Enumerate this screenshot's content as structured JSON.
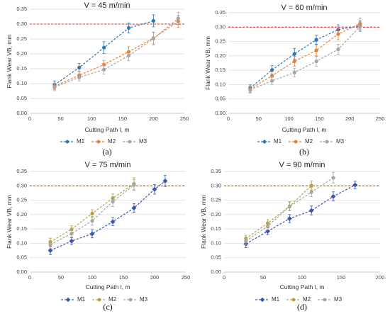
{
  "chart_data": [
    {
      "type": "line",
      "title": "V = 45 m/min",
      "xlabel": "Cutting Path l, m",
      "ylabel": "Flank Wear VB, mm",
      "xlim": [
        0,
        250
      ],
      "ylim": [
        0,
        0.35
      ],
      "xticks": [
        "0",
        "50",
        "100",
        "150",
        "200",
        "250"
      ],
      "yticks": [
        "0.00",
        "0.05",
        "0.10",
        "0.15",
        "0.20",
        "0.25",
        "0.30",
        "0.35"
      ],
      "threshold": 0.3,
      "threshold_color": "#e83030",
      "panel_label": "(a)",
      "series": [
        {
          "name": "M1",
          "color": "#2e75b6",
          "marker": "circle",
          "x": [
            40,
            80,
            120,
            160,
            200
          ],
          "y": [
            0.096,
            0.154,
            0.221,
            0.287,
            0.311
          ],
          "err": [
            0.013,
            0.014,
            0.02,
            0.017,
            0.02
          ]
        },
        {
          "name": "M2",
          "color": "#ed7d31",
          "marker": "circle",
          "x": [
            40,
            80,
            120,
            160,
            200,
            240
          ],
          "y": [
            0.091,
            0.128,
            0.164,
            0.207,
            0.253,
            0.309
          ],
          "err": [
            0.011,
            0.012,
            0.014,
            0.017,
            0.02,
            0.02
          ]
        },
        {
          "name": "M3",
          "color": "#a5a5a5",
          "marker": "circle",
          "x": [
            40,
            80,
            120,
            160,
            200,
            240
          ],
          "y": [
            0.088,
            0.121,
            0.147,
            0.194,
            0.251,
            0.319
          ],
          "err": [
            0.012,
            0.012,
            0.015,
            0.017,
            0.021,
            0.021
          ]
        }
      ]
    },
    {
      "type": "line",
      "title": "V = 60 m/min",
      "xlabel": "Cutting Path l, m",
      "ylabel": "Flank Wear VB, mm",
      "xlim": [
        0,
        250
      ],
      "ylim": [
        0,
        0.35
      ],
      "xticks": [
        "0",
        "50",
        "100",
        "150",
        "200",
        "250"
      ],
      "yticks": [
        "0.00",
        "0.05",
        "0.10",
        "0.15",
        "0.20",
        "0.25",
        "0.30",
        "0.35"
      ],
      "threshold": 0.3,
      "threshold_color": "#e83030",
      "panel_label": "(b)",
      "series": [
        {
          "name": "M1",
          "color": "#2e75b6",
          "marker": "circle",
          "x": [
            36,
            72,
            109,
            145,
            181,
            217
          ],
          "y": [
            0.088,
            0.151,
            0.207,
            0.256,
            0.291,
            0.305
          ],
          "err": [
            0.011,
            0.015,
            0.019,
            0.016,
            0.017,
            0.016
          ]
        },
        {
          "name": "M2",
          "color": "#ed7d31",
          "marker": "circle",
          "x": [
            36,
            72,
            109,
            145,
            181,
            217
          ],
          "y": [
            0.084,
            0.131,
            0.181,
            0.219,
            0.276,
            0.312
          ],
          "err": [
            0.011,
            0.014,
            0.017,
            0.019,
            0.02,
            0.019
          ]
        },
        {
          "name": "M3",
          "color": "#a5a5a5",
          "marker": "circle",
          "x": [
            36,
            72,
            109,
            145,
            181,
            217
          ],
          "y": [
            0.082,
            0.113,
            0.142,
            0.181,
            0.223,
            0.302
          ],
          "err": [
            0.011,
            0.012,
            0.015,
            0.017,
            0.017,
            0.017
          ]
        }
      ]
    },
    {
      "type": "line",
      "title": "V = 75 m/min",
      "xlabel": "Cutting Path l, m",
      "ylabel": "Flank Wear VB, mm",
      "xlim": [
        0,
        250
      ],
      "ylim": [
        0,
        0.35
      ],
      "xticks": [
        "0",
        "50",
        "100",
        "150",
        "200",
        "250"
      ],
      "yticks": [
        "0.00",
        "0.05",
        "0.10",
        "0.15",
        "0.20",
        "0.25",
        "0.30",
        "0.35"
      ],
      "threshold": 0.3,
      "threshold_color": "#8c6d2e",
      "panel_label": "(c)",
      "series": [
        {
          "name": "M1",
          "color": "#3a54b4",
          "marker": "diamond",
          "x": [
            33,
            67,
            100,
            133,
            167,
            200,
            217
          ],
          "y": [
            0.075,
            0.108,
            0.133,
            0.175,
            0.223,
            0.288,
            0.317
          ],
          "err": [
            0.014,
            0.012,
            0.014,
            0.014,
            0.015,
            0.017,
            0.019
          ]
        },
        {
          "name": "M2",
          "color": "#b8a13a",
          "marker": "circle",
          "x": [
            33,
            67,
            100,
            133,
            167
          ],
          "y": [
            0.105,
            0.149,
            0.204,
            0.257,
            0.307
          ],
          "err": [
            0.013,
            0.012,
            0.013,
            0.015,
            0.021
          ]
        },
        {
          "name": "M3",
          "color": "#a5a5a5",
          "marker": "circle",
          "x": [
            33,
            67,
            100,
            133,
            167
          ],
          "y": [
            0.096,
            0.134,
            0.178,
            0.245,
            0.303
          ],
          "err": [
            0.013,
            0.012,
            0.015,
            0.017,
            0.019
          ]
        }
      ]
    },
    {
      "type": "line",
      "title": "V = 90 m/min",
      "xlabel": "Cutting Path l, m",
      "ylabel": "Flank Wear VB, mm",
      "xlim": [
        0,
        200
      ],
      "ylim": [
        0,
        0.35
      ],
      "xticks": [
        "0",
        "50",
        "100",
        "150",
        "200"
      ],
      "yticks": [
        "0.00",
        "0.05",
        "0.10",
        "0.15",
        "0.20",
        "0.25",
        "0.30",
        "0.35"
      ],
      "threshold": 0.3,
      "threshold_color": "#8c6d2e",
      "panel_label": "(d)",
      "series": [
        {
          "name": "M1",
          "color": "#3a54b4",
          "marker": "diamond",
          "x": [
            28,
            56,
            84,
            112,
            140,
            168
          ],
          "y": [
            0.098,
            0.142,
            0.186,
            0.214,
            0.263,
            0.303
          ],
          "err": [
            0.013,
            0.012,
            0.014,
            0.016,
            0.016,
            0.013
          ]
        },
        {
          "name": "M2",
          "color": "#b8a13a",
          "marker": "circle",
          "x": [
            28,
            56,
            84,
            112
          ],
          "y": [
            0.117,
            0.17,
            0.229,
            0.301
          ],
          "err": [
            0.011,
            0.012,
            0.016,
            0.016
          ]
        },
        {
          "name": "M3",
          "color": "#a5a5a5",
          "marker": "circle",
          "x": [
            28,
            56,
            84,
            112,
            140
          ],
          "y": [
            0.108,
            0.16,
            0.228,
            0.278,
            0.328
          ],
          "err": [
            0.012,
            0.013,
            0.014,
            0.016,
            0.019
          ]
        }
      ]
    }
  ]
}
